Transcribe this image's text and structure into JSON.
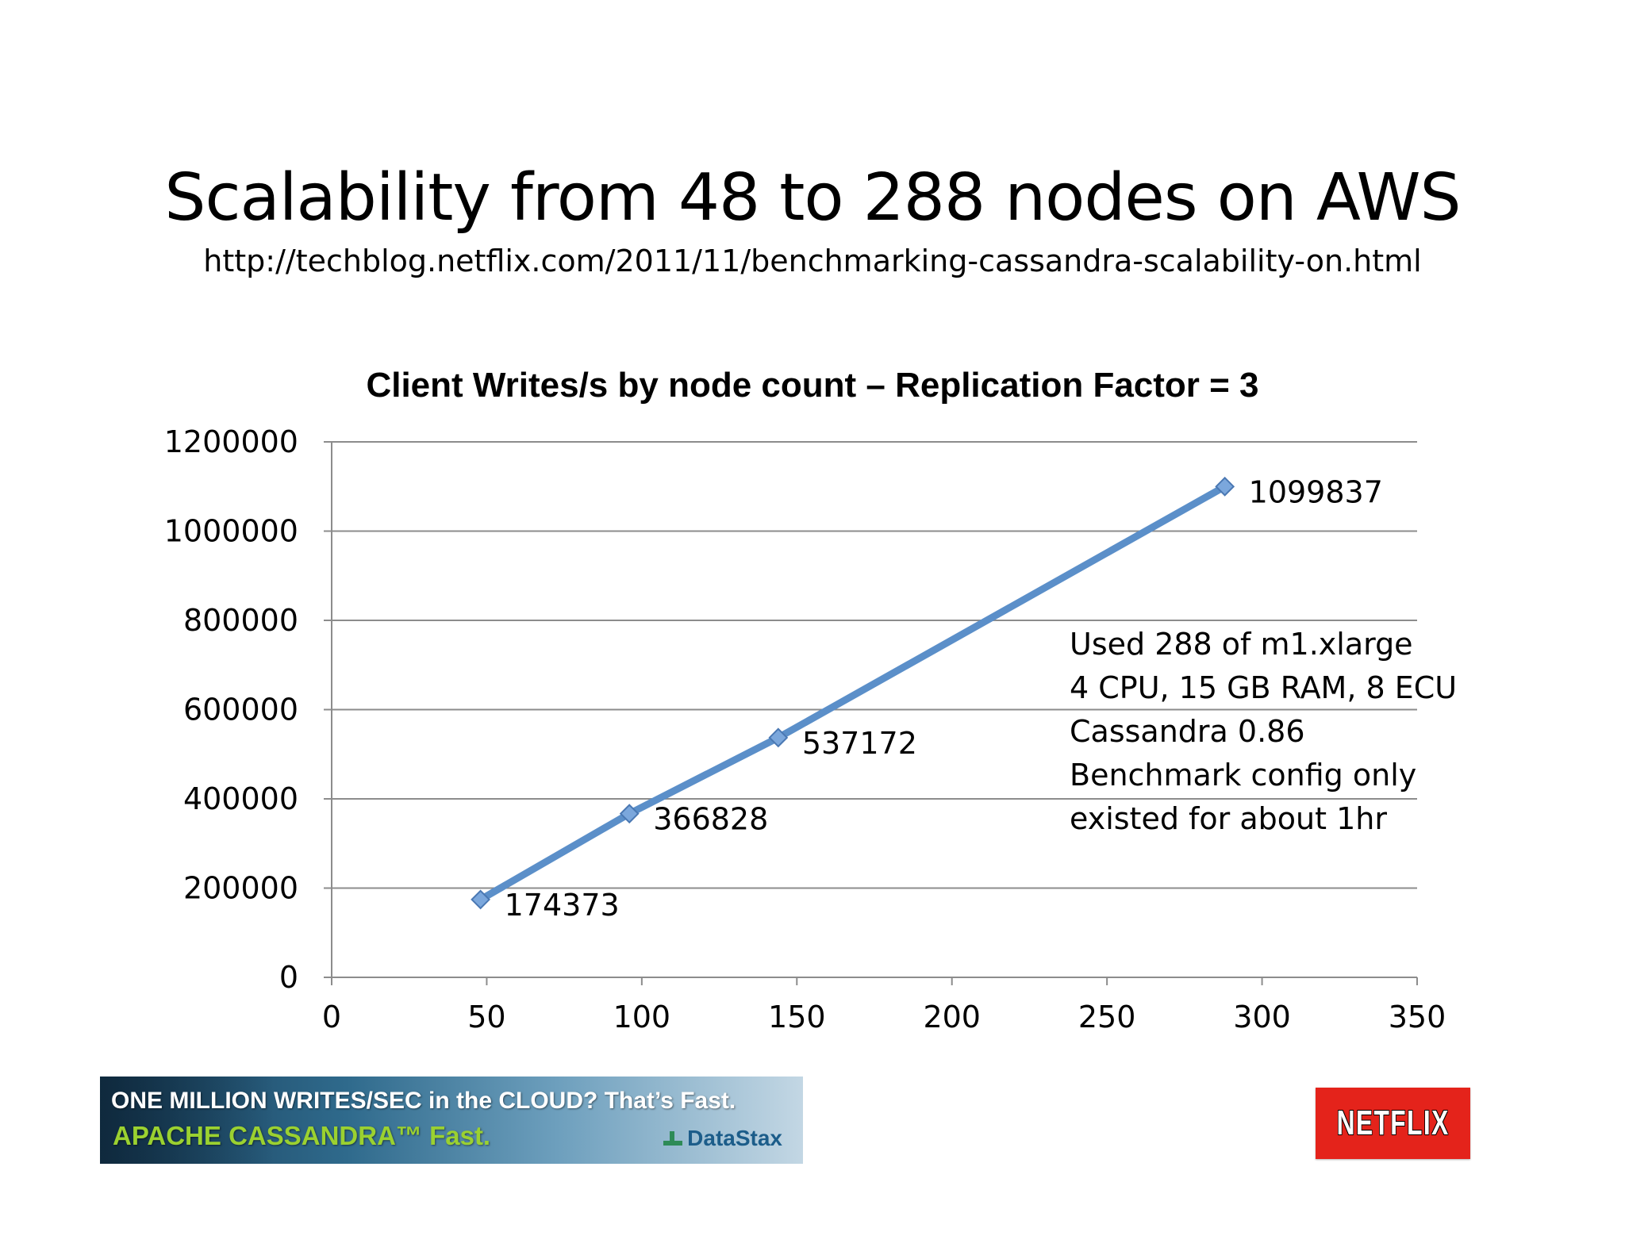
{
  "slide": {
    "title": "Scalability from 48 to 288 nodes on AWS",
    "url": "http://techblog.netflix.com/2011/11/benchmarking-cassandra-scalability-on.html"
  },
  "chart_data": {
    "type": "scatter",
    "title": "Client Writes/s by node count – Replication Factor = 3",
    "xlabel": "",
    "ylabel": "",
    "xlim": [
      0,
      350
    ],
    "ylim": [
      0,
      1200000
    ],
    "x_ticks": [
      "0",
      "50",
      "100",
      "150",
      "200",
      "250",
      "300",
      "350"
    ],
    "y_ticks": [
      "0",
      "200000",
      "400000",
      "600000",
      "800000",
      "1000000",
      "1200000"
    ],
    "grid": "horizontal",
    "lines": true,
    "series": [
      {
        "x": [
          48,
          96,
          144,
          288
        ],
        "y": [
          174373,
          366828,
          537172,
          1099837
        ],
        "labels": [
          "174373",
          "366828",
          "537172",
          "1099837"
        ],
        "color": "#5b8fc9"
      }
    ]
  },
  "annotation": {
    "lines": [
      "Used 288 of m1.xlarge",
      "4 CPU, 15 GB RAM, 8 ECU",
      "Cassandra 0.86",
      "Benchmark config only",
      "existed for about 1hr"
    ]
  },
  "banner": {
    "line1": "ONE MILLION WRITES/SEC in the CLOUD? That’s Fast.",
    "line2": "APACHE CASSANDRA™ Fast.",
    "brand": "DataStax"
  },
  "logo": {
    "text": "NETFLIX"
  }
}
